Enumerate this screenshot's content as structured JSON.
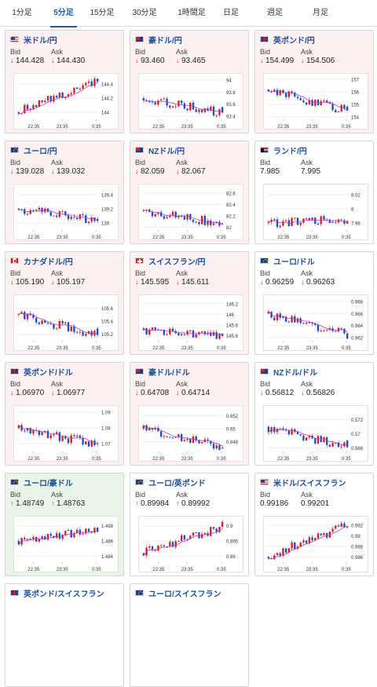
{
  "tabs": [
    {
      "label": "1分足",
      "active": false
    },
    {
      "label": "5分足",
      "active": true
    },
    {
      "label": "15分足",
      "active": false
    },
    {
      "label": "30分足",
      "active": false
    },
    {
      "label": "1時間足",
      "active": false
    },
    {
      "label": "日足",
      "active": false
    },
    {
      "label": "週足",
      "active": false
    },
    {
      "label": "月足",
      "active": false
    }
  ],
  "labels": {
    "bid": "Bid",
    "ask": "Ask"
  },
  "colors": {
    "down_bg": "#fdf0f0",
    "up_bg": "#eaf5ea",
    "flat_bg": "#ffffff",
    "candle_up": "#d22222",
    "candle_down": "#1f4fbf",
    "ma": "#b13bc8",
    "pair_name": "#1a4f9a",
    "tab_active": "#1a5da8"
  },
  "pairs": [
    {
      "name": "米ドル/円",
      "flag": "us",
      "trend": "down",
      "bid": "144.428",
      "ask": "144.430",
      "bid_dir": "down",
      "ask_dir": "down",
      "chart": {
        "x_ticks": [
          "22:35",
          "23:35",
          "0:35"
        ],
        "y_ticks": [
          "144.4",
          "144.2",
          "144"
        ],
        "y_range": [
          143.9,
          144.5
        ],
        "open": 144.0,
        "close": 144.43,
        "dip": "none"
      }
    },
    {
      "name": "豪ドル/円",
      "flag": "au",
      "trend": "down",
      "bid": "93.460",
      "ask": "93.465",
      "bid_dir": "down",
      "ask_dir": "down",
      "chart": {
        "x_ticks": [
          "22:35",
          "23:35",
          "0:35"
        ],
        "y_ticks": [
          "94",
          "93.8",
          "93.6",
          "93.4"
        ],
        "y_range": [
          93.35,
          94.05
        ],
        "open": 93.7,
        "close": 93.46,
        "dip": "end"
      }
    },
    {
      "name": "英ポンド/円",
      "flag": "gb",
      "trend": "down",
      "bid": "154.499",
      "ask": "154.506",
      "bid_dir": "down",
      "ask_dir": "down",
      "chart": {
        "x_ticks": [
          "22:35",
          "23:35",
          "0:35"
        ],
        "y_ticks": [
          "157",
          "156",
          "155",
          "154"
        ],
        "y_range": [
          153.8,
          157.2
        ],
        "open": 156.2,
        "close": 154.5,
        "dip": "end"
      }
    },
    {
      "name": "ユーロ/円",
      "flag": "eu",
      "trend": "down",
      "bid": "139.028",
      "ask": "139.032",
      "bid_dir": "down",
      "ask_dir": "down",
      "chart": {
        "x_ticks": [
          "22:35",
          "23:35",
          "0:35"
        ],
        "y_ticks": [
          "139.4",
          "139.2",
          "139"
        ],
        "y_range": [
          138.9,
          139.5
        ],
        "open": 139.2,
        "close": 139.03,
        "dip": "end"
      }
    },
    {
      "name": "NZドル/円",
      "flag": "nz",
      "trend": "down",
      "bid": "82.059",
      "ask": "82.067",
      "bid_dir": "down",
      "ask_dir": "down",
      "chart": {
        "x_ticks": [
          "22:35",
          "23:35",
          "0:35"
        ],
        "y_ticks": [
          "82.6",
          "82.4",
          "82.2",
          "82"
        ],
        "y_range": [
          81.95,
          82.7
        ],
        "open": 82.3,
        "close": 82.06,
        "dip": "end"
      }
    },
    {
      "name": "ランド/円",
      "flag": "za",
      "trend": "flat",
      "bid": "7.985",
      "ask": "7.995",
      "bid_dir": "none",
      "ask_dir": "none",
      "chart": {
        "x_ticks": [
          "22:35",
          "23:35",
          "0:35"
        ],
        "y_ticks": [
          "8.02",
          "8",
          "7.98"
        ],
        "y_range": [
          7.97,
          8.03
        ],
        "open": 7.98,
        "close": 7.985,
        "dip": "none"
      }
    },
    {
      "name": "カナダドル/円",
      "flag": "ca",
      "trend": "down",
      "bid": "105.190",
      "ask": "105.197",
      "bid_dir": "down",
      "ask_dir": "down",
      "chart": {
        "x_ticks": [
          "22:35",
          "23:35",
          "0:35"
        ],
        "y_ticks": [
          "105.6",
          "105.4",
          "105.2"
        ],
        "y_range": [
          105.1,
          105.75
        ],
        "open": 105.5,
        "close": 105.19,
        "dip": "end"
      }
    },
    {
      "name": "スイスフラン/円",
      "flag": "ch",
      "trend": "down",
      "bid": "145.595",
      "ask": "145.611",
      "bid_dir": "down",
      "ask_dir": "down",
      "chart": {
        "x_ticks": [
          "22:35",
          "23:35",
          "0:35"
        ],
        "y_ticks": [
          "146.2",
          "146",
          "145.8",
          "145.6"
        ],
        "y_range": [
          145.5,
          146.3
        ],
        "open": 145.7,
        "close": 145.6,
        "dip": "none"
      }
    },
    {
      "name": "ユーロ/ドル",
      "flag": "eu",
      "trend": "flat",
      "bid": "0.96259",
      "ask": "0.96263",
      "bid_dir": "down",
      "ask_dir": "down",
      "chart": {
        "x_ticks": [
          "22:35",
          "23:35",
          "0:35"
        ],
        "y_ticks": [
          "0.968",
          "0.966",
          "0.964",
          "0.962"
        ],
        "y_range": [
          0.9615,
          0.9685
        ],
        "open": 0.966,
        "close": 0.9626,
        "dip": "none"
      }
    },
    {
      "name": "英ポンド/ドル",
      "flag": "gb",
      "trend": "down",
      "bid": "1.06970",
      "ask": "1.06977",
      "bid_dir": "down",
      "ask_dir": "down",
      "chart": {
        "x_ticks": [
          "22:35",
          "23:35",
          "0:35"
        ],
        "y_ticks": [
          "1.09",
          "1.08",
          "1.07"
        ],
        "y_range": [
          1.065,
          1.092
        ],
        "open": 1.08,
        "close": 1.0697,
        "dip": "end"
      }
    },
    {
      "name": "豪ドル/ドル",
      "flag": "au",
      "trend": "down",
      "bid": "0.64708",
      "ask": "0.64714",
      "bid_dir": "down",
      "ask_dir": "down",
      "chart": {
        "x_ticks": [
          "22:35",
          "23:35",
          "0:35"
        ],
        "y_ticks": [
          "0.652",
          "0.65",
          "0.648"
        ],
        "y_range": [
          0.6465,
          0.653
        ],
        "open": 0.65,
        "close": 0.6471,
        "dip": "end"
      }
    },
    {
      "name": "NZドル/ドル",
      "flag": "nz",
      "trend": "flat",
      "bid": "0.56812",
      "ask": "0.56826",
      "bid_dir": "down",
      "ask_dir": "down",
      "chart": {
        "x_ticks": [
          "22:35",
          "23:35",
          "0:35"
        ],
        "y_ticks": [
          "0.572",
          "0.57",
          "0.568"
        ],
        "y_range": [
          0.5675,
          0.5735
        ],
        "open": 0.571,
        "close": 0.5681,
        "dip": "end"
      }
    },
    {
      "name": "ユーロ/豪ドル",
      "flag": "eu",
      "trend": "up",
      "bid": "1.48749",
      "ask": "1.48763",
      "bid_dir": "up",
      "ask_dir": "up",
      "chart": {
        "x_ticks": [
          "22:35",
          "23:35",
          "0:35"
        ],
        "y_ticks": [
          "1.488",
          "1.486",
          "1.484"
        ],
        "y_range": [
          1.4832,
          1.4888
        ],
        "open": 1.486,
        "close": 1.4875,
        "dip": "none"
      }
    },
    {
      "name": "ユーロ/英ポンド",
      "flag": "eu",
      "trend": "flat",
      "bid": "0.89984",
      "ask": "0.89992",
      "bid_dir": "up",
      "ask_dir": "up",
      "chart": {
        "x_ticks": [
          "22:35",
          "23:35",
          "0:35"
        ],
        "y_ticks": [
          "0.9",
          "0.895",
          "0.89"
        ],
        "y_range": [
          0.888,
          0.902
        ],
        "open": 0.891,
        "close": 0.8998,
        "dip": "spike"
      }
    },
    {
      "name": "米ドル/スイスフラン",
      "flag": "us",
      "trend": "flat",
      "bid": "0.99186",
      "ask": "0.99201",
      "bid_dir": "none",
      "ask_dir": "none",
      "chart": {
        "x_ticks": [
          "22:35",
          "23:35",
          "0:35"
        ],
        "y_ticks": [
          "0.992",
          "0.99",
          "0.988",
          "0.986"
        ],
        "y_range": [
          0.985,
          0.993
        ],
        "open": 0.986,
        "close": 0.992,
        "dip": "none"
      }
    }
  ],
  "partial_row": [
    {
      "name": "英ポンド/スイスフラン",
      "flag": "gb"
    },
    {
      "name": "ユーロ/スイスフラン",
      "flag": "eu"
    }
  ]
}
